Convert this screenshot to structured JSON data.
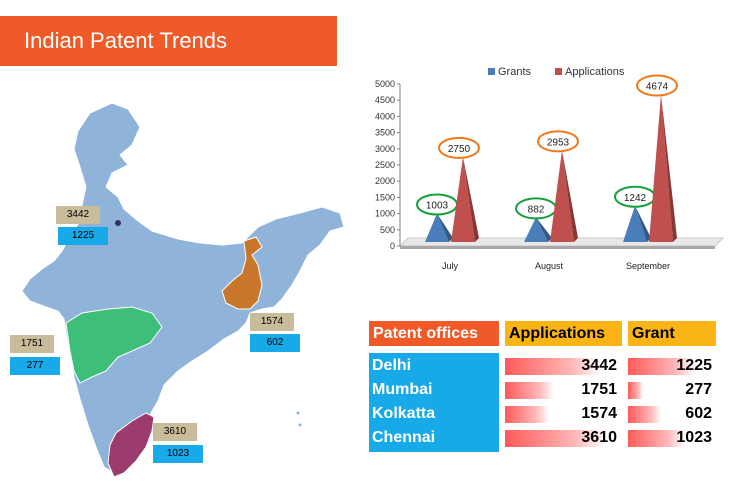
{
  "title": "Indian Patent Trends",
  "map": {
    "states": [
      {
        "name": "Delhi",
        "applications": "3442",
        "grants": "1225"
      },
      {
        "name": "Maharashtra",
        "applications": "1751",
        "grants": "277"
      },
      {
        "name": "West Bengal",
        "applications": "1574",
        "grants": "602"
      },
      {
        "name": "Tamil Nadu",
        "applications": "3610",
        "grants": "1023"
      }
    ],
    "colors": {
      "country": "#8fb3d9",
      "maharashtra": "#3dbf7a",
      "west_bengal": "#c8762b",
      "tamil_nadu": "#9c3b6e"
    }
  },
  "chart_data": {
    "type": "bar",
    "style": "3d-cone",
    "categories": [
      "July",
      "August",
      "September"
    ],
    "series": [
      {
        "name": "Grants",
        "values": [
          1003,
          882,
          1242
        ],
        "color": "#4a7ebb"
      },
      {
        "name": "Applications",
        "values": [
          2750,
          2953,
          4674
        ],
        "color": "#c0504d"
      }
    ],
    "ylim": [
      0,
      5000
    ],
    "yticks": [
      0,
      500,
      1000,
      1500,
      2000,
      2500,
      3000,
      3500,
      4000,
      4500,
      5000
    ],
    "legend_position": "top",
    "grid": false,
    "title": "",
    "xlabel": "",
    "ylabel": "",
    "annotation_colors": {
      "Grants": "#13a03c",
      "Applications": "#f07818"
    }
  },
  "table": {
    "headers": {
      "office": "Patent offices",
      "applications": "Applications",
      "grant": "Grant"
    },
    "rows": [
      {
        "office": "Delhi",
        "applications": "3442",
        "grant": "1225",
        "app_value": 3442,
        "grant_value": 1225
      },
      {
        "office": "Mumbai",
        "applications": "1751",
        "grant": "277",
        "app_value": 1751,
        "grant_value": 277
      },
      {
        "office": "Kolkatta",
        "applications": "1574",
        "grant": "602",
        "app_value": 1574,
        "grant_value": 602
      },
      {
        "office": "Chennai",
        "applications": "3610",
        "grant": "1023",
        "app_value": 3610,
        "grant_value": 1023
      }
    ]
  }
}
